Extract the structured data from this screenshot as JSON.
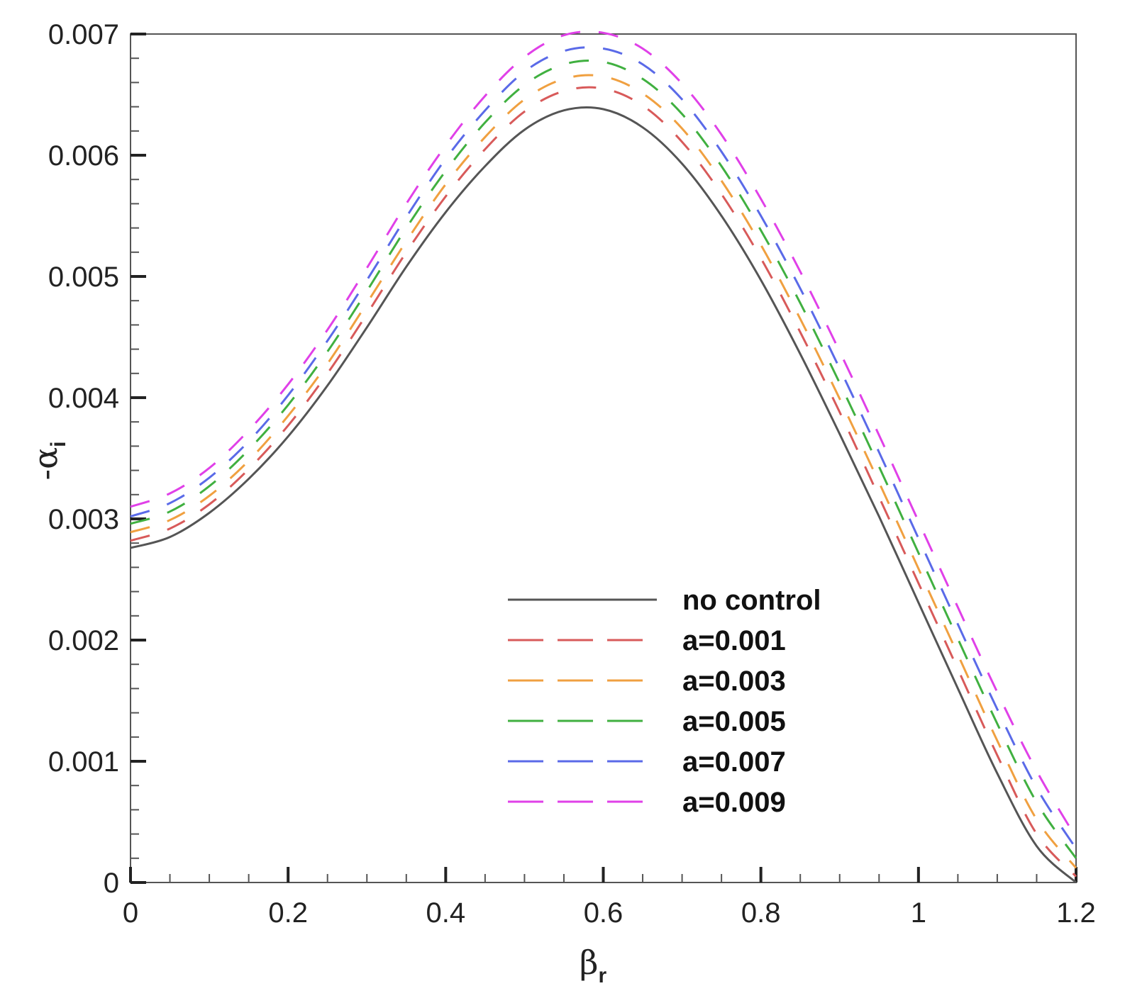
{
  "chart_data": {
    "type": "line",
    "xlabel": {
      "symbol": "β",
      "sub": "r"
    },
    "ylabel": {
      "symbol": "-α",
      "sub": "i"
    },
    "xlim": [
      0,
      1.2
    ],
    "ylim": [
      0,
      0.007
    ],
    "x_major_ticks": [
      0,
      0.2,
      0.4,
      0.6,
      0.8,
      1,
      1.2
    ],
    "x_tick_labels": [
      "0",
      "0.2",
      "0.4",
      "0.6",
      "0.8",
      "1",
      "1.2"
    ],
    "x_minor_step": 0.05,
    "y_major_ticks": [
      0,
      0.001,
      0.002,
      0.003,
      0.004,
      0.005,
      0.006,
      0.007
    ],
    "y_tick_labels": [
      "0",
      "0.001",
      "0.002",
      "0.003",
      "0.004",
      "0.005",
      "0.006",
      "0.007"
    ],
    "y_minor_step": 0.0002,
    "grid": false,
    "legend_position": "lower-center-right",
    "x": [
      0,
      0.05,
      0.1,
      0.15,
      0.2,
      0.25,
      0.3,
      0.35,
      0.4,
      0.45,
      0.5,
      0.55,
      0.6,
      0.65,
      0.7,
      0.75,
      0.8,
      0.85,
      0.9,
      0.95,
      1.0,
      1.05,
      1.1,
      1.15,
      1.2
    ],
    "series": [
      {
        "name": "no control",
        "style": "solid",
        "color": "#555555",
        "values": [
          0.00276,
          0.00285,
          0.00305,
          0.00333,
          0.00368,
          0.0041,
          0.00458,
          0.00508,
          0.00553,
          0.00591,
          0.00621,
          0.00637,
          0.00638,
          0.00623,
          0.00593,
          0.0055,
          0.00497,
          0.00436,
          0.0037,
          0.00302,
          0.00231,
          0.0016,
          0.0009,
          0.0003,
          0.0
        ]
      },
      {
        "name": "a=0.001",
        "style": "dashed",
        "color": "#d85a5a",
        "values": [
          0.00282,
          0.00292,
          0.00312,
          0.00341,
          0.00377,
          0.0042,
          0.00469,
          0.0052,
          0.00566,
          0.00605,
          0.00636,
          0.00653,
          0.00655,
          0.00641,
          0.00611,
          0.00568,
          0.00515,
          0.00454,
          0.00388,
          0.00318,
          0.00247,
          0.00176,
          0.00105,
          0.0004,
          5e-05
        ]
      },
      {
        "name": "a=0.003",
        "style": "dashed",
        "color": "#f0a040",
        "values": [
          0.00289,
          0.00299,
          0.00319,
          0.00348,
          0.00385,
          0.00428,
          0.00478,
          0.00529,
          0.00576,
          0.00615,
          0.00646,
          0.00663,
          0.00665,
          0.00651,
          0.00622,
          0.00579,
          0.00526,
          0.00465,
          0.00399,
          0.0033,
          0.00259,
          0.00188,
          0.00117,
          0.00052,
          0.00012
        ]
      },
      {
        "name": "a=0.005",
        "style": "dashed",
        "color": "#40b040",
        "values": [
          0.00296,
          0.00306,
          0.00327,
          0.00357,
          0.00394,
          0.00438,
          0.00488,
          0.0054,
          0.00587,
          0.00627,
          0.00658,
          0.00675,
          0.00677,
          0.00663,
          0.00634,
          0.00591,
          0.00538,
          0.00478,
          0.00412,
          0.00343,
          0.00272,
          0.00201,
          0.00131,
          0.00066,
          0.0002
        ]
      },
      {
        "name": "a=0.007",
        "style": "dashed",
        "color": "#5a6ae8",
        "values": [
          0.00302,
          0.00313,
          0.00334,
          0.00364,
          0.00402,
          0.00447,
          0.00497,
          0.00549,
          0.00597,
          0.00637,
          0.00669,
          0.00686,
          0.00688,
          0.00675,
          0.00646,
          0.00603,
          0.0055,
          0.0049,
          0.00424,
          0.00355,
          0.00284,
          0.00213,
          0.00143,
          0.00078,
          0.00028
        ]
      },
      {
        "name": "a=0.009",
        "style": "dashed",
        "color": "#e040e8",
        "values": [
          0.0031,
          0.00321,
          0.00342,
          0.00373,
          0.00411,
          0.00456,
          0.00507,
          0.0056,
          0.00608,
          0.00649,
          0.00681,
          0.00699,
          0.00701,
          0.00688,
          0.00659,
          0.00617,
          0.00564,
          0.00504,
          0.00438,
          0.00369,
          0.00298,
          0.00227,
          0.00157,
          0.00092,
          0.00037
        ]
      }
    ]
  }
}
